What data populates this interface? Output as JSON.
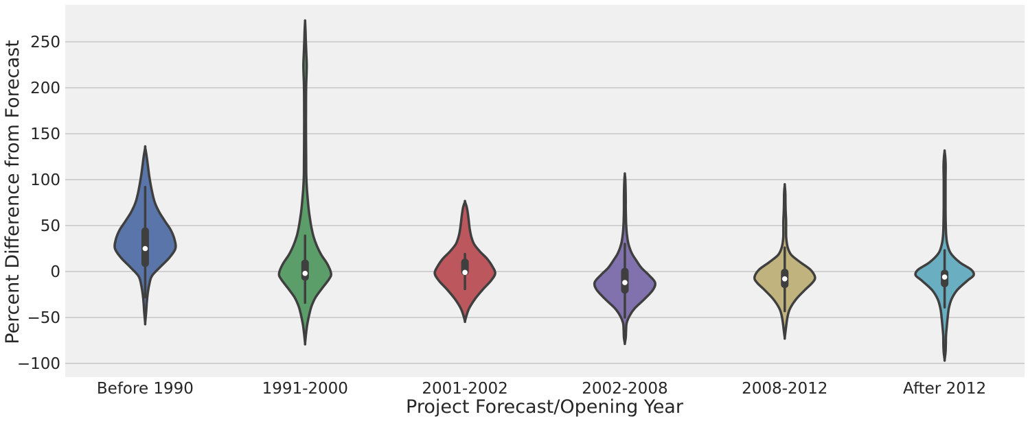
{
  "chart_data": {
    "type": "violin",
    "title": "",
    "xlabel": "Project Forecast/Opening Year",
    "ylabel": "Percent Difference from Forecast",
    "ylim": [
      -115,
      290
    ],
    "yticks": [
      -100,
      -50,
      0,
      50,
      100,
      150,
      200,
      250
    ],
    "ytick_labels": [
      "−100",
      "−50",
      "0",
      "50",
      "100",
      "150",
      "200",
      "250"
    ],
    "grid": "horizontal",
    "background": "#f0f0f0",
    "grid_color": "#b0b0b0",
    "outline_color": "#3f3f3f",
    "categories": [
      "Before 1990",
      "1991-2000",
      "2001-2002",
      "2002-2008",
      "2008-2012",
      "After 2012"
    ],
    "series": [
      {
        "category": "Before 1990",
        "color": "#5975a9",
        "min": -56,
        "max": 135,
        "q1": 5,
        "median": 25,
        "q3": 48,
        "whisker_low": -28,
        "whisker_high": 92,
        "density": [
          [
            -56,
            0.0
          ],
          [
            -45,
            0.03
          ],
          [
            -35,
            0.05
          ],
          [
            -25,
            0.08
          ],
          [
            -15,
            0.13
          ],
          [
            -5,
            0.22
          ],
          [
            5,
            0.5
          ],
          [
            15,
            0.8
          ],
          [
            25,
            1.0
          ],
          [
            35,
            0.97
          ],
          [
            45,
            0.85
          ],
          [
            55,
            0.65
          ],
          [
            65,
            0.46
          ],
          [
            75,
            0.32
          ],
          [
            85,
            0.24
          ],
          [
            95,
            0.18
          ],
          [
            105,
            0.13
          ],
          [
            115,
            0.09
          ],
          [
            125,
            0.05
          ],
          [
            135,
            0.0
          ]
        ]
      },
      {
        "category": "1991-2000",
        "color": "#5b9e6a",
        "min": -78,
        "max": 272,
        "q1": -10,
        "median": -2,
        "q3": 13,
        "whisker_low": -34,
        "whisker_high": 39,
        "density": [
          [
            -78,
            0.0
          ],
          [
            -68,
            0.03
          ],
          [
            -58,
            0.07
          ],
          [
            -48,
            0.13
          ],
          [
            -38,
            0.21
          ],
          [
            -28,
            0.35
          ],
          [
            -18,
            0.57
          ],
          [
            -8,
            0.8
          ],
          [
            -2,
            0.86
          ],
          [
            8,
            0.74
          ],
          [
            18,
            0.54
          ],
          [
            28,
            0.39
          ],
          [
            38,
            0.28
          ],
          [
            48,
            0.21
          ],
          [
            58,
            0.16
          ],
          [
            68,
            0.12
          ],
          [
            78,
            0.09
          ],
          [
            90,
            0.06
          ],
          [
            105,
            0.04
          ],
          [
            125,
            0.035
          ],
          [
            150,
            0.03
          ],
          [
            175,
            0.03
          ],
          [
            200,
            0.035
          ],
          [
            215,
            0.05
          ],
          [
            225,
            0.055
          ],
          [
            235,
            0.045
          ],
          [
            250,
            0.025
          ],
          [
            262,
            0.015
          ],
          [
            272,
            0.0
          ]
        ]
      },
      {
        "category": "2001-2002",
        "color": "#bc575d",
        "min": -54,
        "max": 76,
        "q1": -4,
        "median": -1,
        "q3": 14,
        "whisker_low": -19,
        "whisker_high": 19,
        "density": [
          [
            -54,
            0.0
          ],
          [
            -48,
            0.05
          ],
          [
            -40,
            0.14
          ],
          [
            -30,
            0.33
          ],
          [
            -20,
            0.58
          ],
          [
            -10,
            0.86
          ],
          [
            -2,
            1.0
          ],
          [
            6,
            0.9
          ],
          [
            14,
            0.73
          ],
          [
            22,
            0.49
          ],
          [
            30,
            0.3
          ],
          [
            38,
            0.21
          ],
          [
            46,
            0.16
          ],
          [
            54,
            0.13
          ],
          [
            62,
            0.1
          ],
          [
            70,
            0.06
          ],
          [
            76,
            0.0
          ]
        ]
      },
      {
        "category": "2002-2008",
        "color": "#8172ae",
        "min": -78,
        "max": 106,
        "q1": -24,
        "median": -12,
        "q3": 4,
        "whisker_low": -50,
        "whisker_high": 30,
        "density": [
          [
            -78,
            0.0
          ],
          [
            -72,
            0.03
          ],
          [
            -64,
            0.04
          ],
          [
            -56,
            0.06
          ],
          [
            -48,
            0.16
          ],
          [
            -40,
            0.33
          ],
          [
            -30,
            0.65
          ],
          [
            -20,
            0.93
          ],
          [
            -12,
            1.0
          ],
          [
            -4,
            0.8
          ],
          [
            4,
            0.55
          ],
          [
            12,
            0.38
          ],
          [
            20,
            0.23
          ],
          [
            30,
            0.12
          ],
          [
            40,
            0.07
          ],
          [
            50,
            0.045
          ],
          [
            60,
            0.035
          ],
          [
            70,
            0.03
          ],
          [
            80,
            0.03
          ],
          [
            90,
            0.025
          ],
          [
            100,
            0.015
          ],
          [
            106,
            0.0
          ]
        ]
      },
      {
        "category": "2008-2012",
        "color": "#c1b37d",
        "min": -72,
        "max": 94,
        "q1": -18,
        "median": -8,
        "q3": 3,
        "whisker_low": -43,
        "whisker_high": 26,
        "density": [
          [
            -72,
            0.0
          ],
          [
            -64,
            0.03
          ],
          [
            -56,
            0.06
          ],
          [
            -48,
            0.1
          ],
          [
            -40,
            0.18
          ],
          [
            -30,
            0.38
          ],
          [
            -20,
            0.67
          ],
          [
            -12,
            0.92
          ],
          [
            -6,
            1.0
          ],
          [
            2,
            0.85
          ],
          [
            10,
            0.52
          ],
          [
            18,
            0.22
          ],
          [
            26,
            0.1
          ],
          [
            36,
            0.05
          ],
          [
            46,
            0.045
          ],
          [
            56,
            0.045
          ],
          [
            66,
            0.03
          ],
          [
            76,
            0.025
          ],
          [
            86,
            0.02
          ],
          [
            94,
            0.0
          ]
        ]
      },
      {
        "category": "After 2012",
        "color": "#6aaec2",
        "min": -96,
        "max": 131,
        "q1": -17,
        "median": -6,
        "q3": 2,
        "whisker_low": -39,
        "whisker_high": 23,
        "density": [
          [
            -96,
            0.0
          ],
          [
            -88,
            0.03
          ],
          [
            -80,
            0.04
          ],
          [
            -70,
            0.045
          ],
          [
            -60,
            0.07
          ],
          [
            -50,
            0.1
          ],
          [
            -40,
            0.14
          ],
          [
            -30,
            0.23
          ],
          [
            -20,
            0.42
          ],
          [
            -10,
            0.75
          ],
          [
            -4,
            0.96
          ],
          [
            2,
            0.88
          ],
          [
            10,
            0.5
          ],
          [
            20,
            0.2
          ],
          [
            30,
            0.09
          ],
          [
            40,
            0.05
          ],
          [
            55,
            0.035
          ],
          [
            70,
            0.03
          ],
          [
            85,
            0.03
          ],
          [
            100,
            0.03
          ],
          [
            115,
            0.035
          ],
          [
            125,
            0.02
          ],
          [
            131,
            0.0
          ]
        ]
      }
    ]
  }
}
